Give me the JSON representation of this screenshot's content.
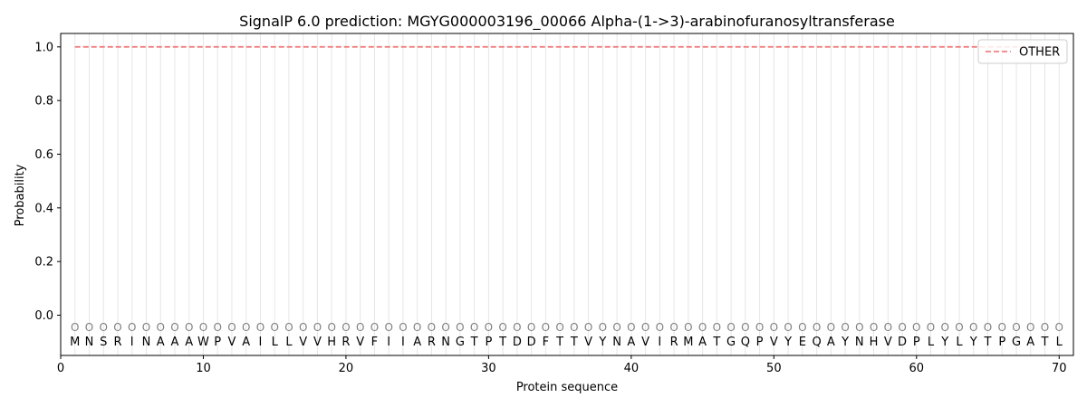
{
  "chart_data": {
    "type": "line",
    "title": "SignalP 6.0 prediction: MGYG000003196_00066 Alpha-(1->3)-arabinofuranosyltransferase",
    "xlabel": "Protein sequence",
    "ylabel": "Probability",
    "xlim": [
      0,
      71
    ],
    "ylim": [
      -0.15,
      1.05
    ],
    "xticks": [
      0,
      10,
      20,
      30,
      40,
      50,
      60,
      70
    ],
    "yticks": [
      0.0,
      0.2,
      0.4,
      0.6,
      0.8,
      1.0
    ],
    "ytick_labels": [
      "0.0",
      "0.2",
      "0.4",
      "0.6",
      "0.8",
      "1.0"
    ],
    "grid": "vertical lines at each residue",
    "legend_position": "top-right",
    "series": [
      {
        "name": "OTHER",
        "style": "dashed",
        "color": "#f08080",
        "x_start": 1,
        "x_end": 70,
        "value": 1.0
      }
    ],
    "residue_label_value": -0.045,
    "residue_label": "O",
    "sequence": [
      "M",
      "N",
      "S",
      "R",
      "I",
      "N",
      "A",
      "A",
      "A",
      "W",
      "P",
      "V",
      "A",
      "I",
      "L",
      "L",
      "V",
      "V",
      "H",
      "R",
      "V",
      "F",
      "I",
      "I",
      "A",
      "R",
      "N",
      "G",
      "T",
      "P",
      "T",
      "D",
      "D",
      "F",
      "T",
      "T",
      "V",
      "Y",
      "N",
      "A",
      "V",
      "I",
      "R",
      "M",
      "A",
      "T",
      "G",
      "Q",
      "P",
      "V",
      "Y",
      "E",
      "Q",
      "A",
      "Y",
      "N",
      "H",
      "V",
      "D",
      "P",
      "L",
      "Y",
      "L",
      "Y",
      "T",
      "P",
      "G",
      "A",
      "T",
      "L"
    ]
  }
}
